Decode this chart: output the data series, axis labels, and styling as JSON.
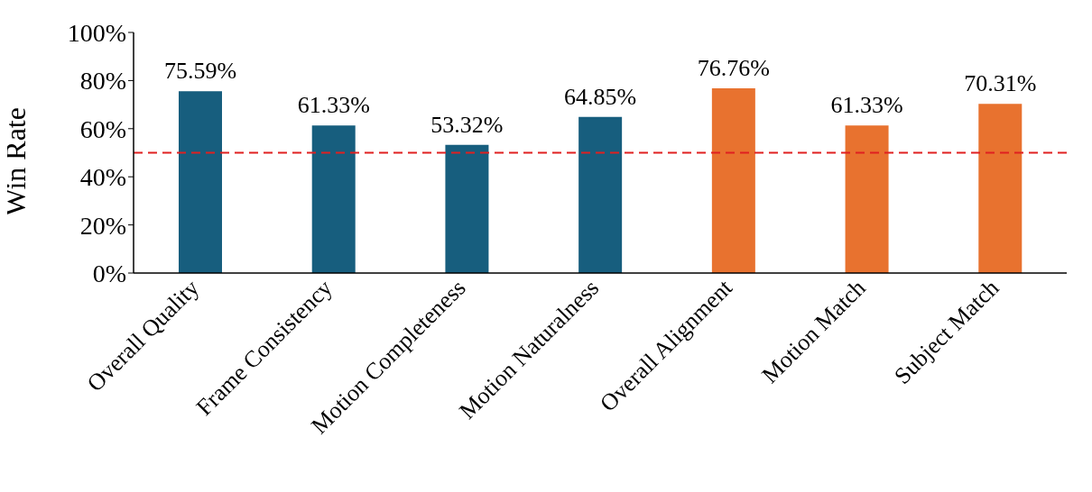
{
  "chart_data": {
    "type": "bar",
    "ylabel": "Win Rate",
    "categories": [
      "Overall Quality",
      "Frame Consistency",
      "Motion Completeness",
      "Motion Naturalness",
      "Overall Alignment",
      "Motion Match",
      "Subject Match"
    ],
    "values": [
      75.59,
      61.33,
      53.32,
      64.85,
      76.76,
      61.33,
      70.31
    ],
    "value_labels": [
      "75.59%",
      "61.33%",
      "53.32%",
      "64.85%",
      "76.76%",
      "61.33%",
      "70.31%"
    ],
    "colors": [
      "#175e7e",
      "#175e7e",
      "#175e7e",
      "#175e7e",
      "#e8722f",
      "#e8722f",
      "#e8722f"
    ],
    "ylim": [
      0,
      100
    ],
    "yticks": [
      {
        "value": 0,
        "label": "0%"
      },
      {
        "value": 20,
        "label": "20%"
      },
      {
        "value": 40,
        "label": "40%"
      },
      {
        "value": 60,
        "label": "60%"
      },
      {
        "value": 80,
        "label": "80%"
      },
      {
        "value": 100,
        "label": "100%"
      }
    ],
    "ref_lines": [
      {
        "axis": "y",
        "value": 50,
        "color": "#e02020",
        "line_style": "dashed"
      }
    ],
    "grid": false
  }
}
